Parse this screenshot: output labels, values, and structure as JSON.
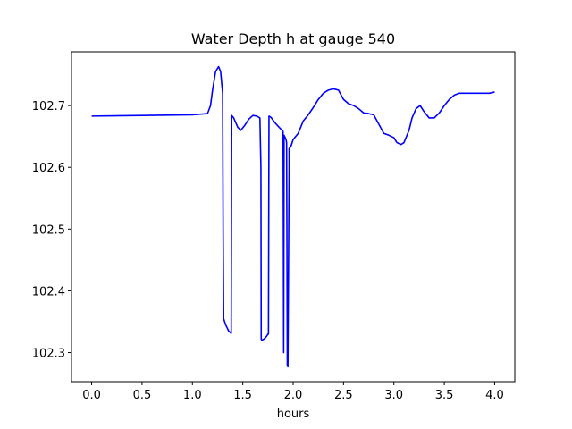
{
  "chart_data": {
    "type": "line",
    "title": "Water Depth h at gauge 540",
    "xlabel": "hours",
    "ylabel": "",
    "xlim": [
      -0.2,
      4.2
    ],
    "ylim": [
      102.253,
      102.787
    ],
    "xticks": [
      0.0,
      0.5,
      1.0,
      1.5,
      2.0,
      2.5,
      3.0,
      3.5,
      4.0
    ],
    "xtick_labels": [
      "0.0",
      "0.5",
      "1.0",
      "1.5",
      "2.0",
      "2.5",
      "3.0",
      "3.5",
      "4.0"
    ],
    "yticks": [
      102.3,
      102.4,
      102.5,
      102.6,
      102.7
    ],
    "ytick_labels": [
      "102.3",
      "102.4",
      "102.5",
      "102.6",
      "102.7"
    ],
    "grid": false,
    "legend": "none",
    "series": [
      {
        "color": "#0000ff",
        "x": [
          0.0,
          0.5,
          1.0,
          1.15,
          1.18,
          1.2,
          1.23,
          1.26,
          1.28,
          1.3,
          1.305,
          1.31,
          1.33,
          1.36,
          1.385,
          1.39,
          1.41,
          1.45,
          1.48,
          1.52,
          1.56,
          1.6,
          1.64,
          1.67,
          1.68,
          1.683,
          1.69,
          1.71,
          1.73,
          1.75,
          1.755,
          1.76,
          1.78,
          1.82,
          1.86,
          1.89,
          1.9,
          1.903,
          1.906,
          1.91,
          1.93,
          1.935,
          1.938,
          1.942,
          1.948,
          1.96,
          1.96,
          1.963,
          1.966,
          1.97,
          1.98,
          2.0,
          2.05,
          2.1,
          2.15,
          2.2,
          2.25,
          2.3,
          2.35,
          2.4,
          2.45,
          2.5,
          2.55,
          2.6,
          2.65,
          2.7,
          2.75,
          2.8,
          2.85,
          2.9,
          2.95,
          3.0,
          3.03,
          3.07,
          3.1,
          3.15,
          3.18,
          3.22,
          3.26,
          3.3,
          3.35,
          3.4,
          3.45,
          3.5,
          3.55,
          3.6,
          3.65,
          3.7,
          3.75,
          3.8,
          3.85,
          3.9,
          3.95,
          4.0
        ],
        "y": [
          102.683,
          102.684,
          102.685,
          102.687,
          102.7,
          102.725,
          102.755,
          102.763,
          102.755,
          102.72,
          102.5,
          102.355,
          102.345,
          102.335,
          102.331,
          102.684,
          102.68,
          102.665,
          102.66,
          102.668,
          102.678,
          102.684,
          102.683,
          102.68,
          102.6,
          102.322,
          102.32,
          102.322,
          102.325,
          102.33,
          102.33,
          102.683,
          102.681,
          102.672,
          102.665,
          102.66,
          102.658,
          102.5,
          102.3,
          102.652,
          102.645,
          102.64,
          102.5,
          102.28,
          102.277,
          102.6,
          102.63,
          102.631,
          102.632,
          102.632,
          102.635,
          102.645,
          102.655,
          102.675,
          102.685,
          102.697,
          102.71,
          102.72,
          102.725,
          102.727,
          102.725,
          102.71,
          102.703,
          102.7,
          102.695,
          102.688,
          102.687,
          102.685,
          102.67,
          102.655,
          102.652,
          102.648,
          102.64,
          102.637,
          102.64,
          102.66,
          102.68,
          102.695,
          102.7,
          102.69,
          102.68,
          102.68,
          102.688,
          102.7,
          102.71,
          102.717,
          102.72,
          102.72,
          102.72,
          102.72,
          102.72,
          102.72,
          102.72,
          102.722
        ]
      }
    ]
  }
}
